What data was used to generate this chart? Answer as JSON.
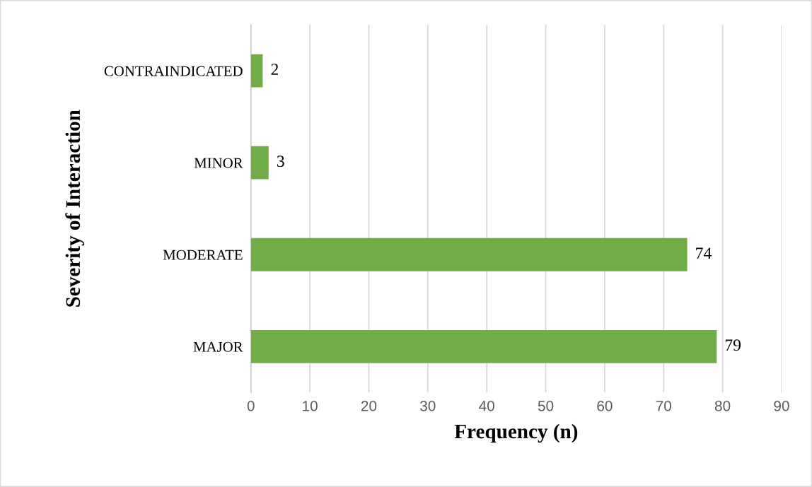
{
  "chart_data": {
    "type": "bar",
    "orientation": "horizontal",
    "xlabel": "Frequency (n)",
    "ylabel": "Severity of Interaction",
    "categories": [
      "CONTRAINDICATED",
      "MINOR",
      "MODERATE",
      "MAJOR"
    ],
    "values": [
      2,
      3,
      74,
      79
    ],
    "color": "#70ad47",
    "xlim": [
      0,
      90
    ],
    "xticks": [
      0,
      10,
      20,
      30,
      40,
      50,
      60,
      70,
      80,
      90
    ],
    "grid": "x",
    "data_labels": true,
    "legend": false
  }
}
